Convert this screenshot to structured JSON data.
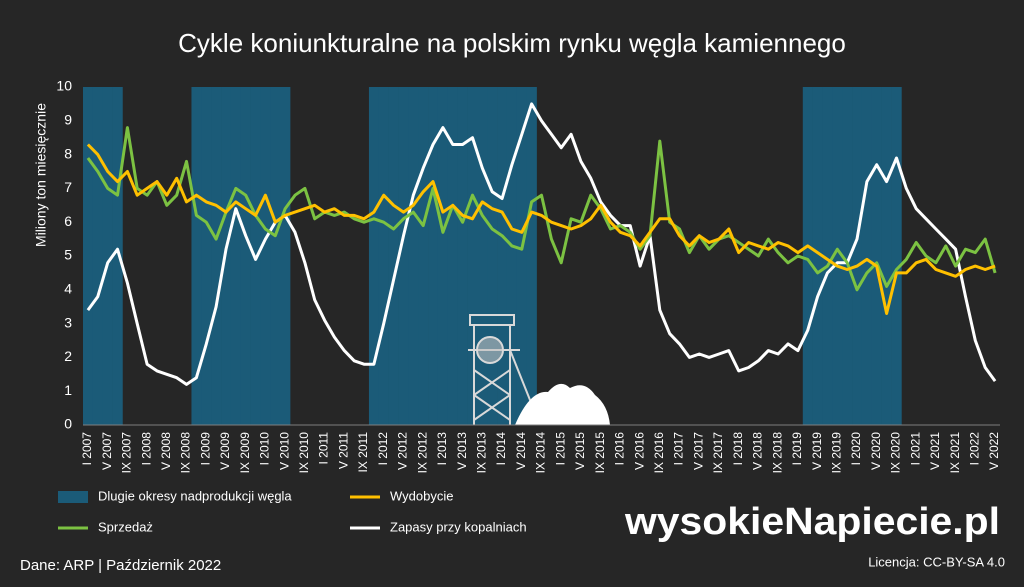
{
  "chart_data": {
    "type": "line",
    "title": "Cykle koniunkturalne na polskim rynku węgla kamiennego",
    "y_label": "Miliony ton miesięcznie",
    "source": "Dane: ARP  |  Październik 2022",
    "logo": "wysokieNapiecie.pl",
    "license": "Licencja: CC-BY-SA 4.0",
    "ylim": [
      0,
      10
    ],
    "yticks": [
      0,
      1,
      2,
      3,
      4,
      5,
      6,
      7,
      8,
      9,
      10
    ],
    "grid": false,
    "categories": [
      "I 2007",
      null,
      "V 2007",
      null,
      "IX 2007",
      null,
      "I 2008",
      null,
      "V 2008",
      null,
      "IX 2008",
      null,
      "I 2009",
      null,
      "V 2009",
      null,
      "IX 2009",
      null,
      "I 2010",
      null,
      "V 2010",
      null,
      "IX 2010",
      null,
      "I 2011",
      null,
      "V 2011",
      null,
      "IX 2011",
      null,
      "I 2012",
      null,
      "V 2012",
      null,
      "IX 2012",
      null,
      "I 2013",
      null,
      "V 2013",
      null,
      "IX 2013",
      null,
      "I 2014",
      null,
      "V 2014",
      null,
      "IX 2014",
      null,
      "I 2015",
      null,
      "V 2015",
      null,
      "IX 2015",
      null,
      "I 2016",
      null,
      "V 2016",
      null,
      "IX 2016",
      null,
      "I 2017",
      null,
      "V 2017",
      null,
      "IX 2017",
      null,
      "I 2018",
      null,
      "V 2018",
      null,
      "IX 2018",
      null,
      "I 2019",
      null,
      "V 2019",
      null,
      "IX 2019",
      null,
      "I 2020",
      null,
      "V 2020",
      null,
      "IX 2020",
      null,
      "I 2021",
      null,
      "V 2021",
      null,
      "IX 2021",
      null,
      "I 2022",
      null,
      "V 2022"
    ],
    "series": [
      {
        "name": "Dlugie okresy nadprodukcji węgla",
        "type": "band",
        "color": "#1b5b78",
        "values": [
          10,
          10,
          10,
          10,
          null,
          null,
          null,
          null,
          null,
          null,
          null,
          10,
          10,
          10,
          10,
          10,
          10,
          10,
          10,
          10,
          10,
          null,
          null,
          null,
          null,
          null,
          null,
          null,
          null,
          10,
          10,
          10,
          10,
          10,
          10,
          10,
          10,
          10,
          10,
          10,
          10,
          10,
          10,
          10,
          10,
          10,
          null,
          null,
          null,
          null,
          null,
          null,
          null,
          null,
          null,
          null,
          null,
          null,
          null,
          null,
          null,
          null,
          null,
          null,
          null,
          null,
          null,
          null,
          null,
          null,
          null,
          null,
          null,
          10,
          10,
          10,
          10,
          10,
          10,
          10,
          10,
          10,
          10,
          null,
          null,
          null,
          null,
          null,
          null,
          null,
          null,
          null,
          null
        ]
      },
      {
        "name": "Wydobycie",
        "type": "line",
        "color": "#ffc000",
        "values": [
          8.3,
          8.0,
          7.5,
          7.2,
          7.5,
          6.8,
          7.0,
          7.2,
          6.8,
          7.3,
          6.6,
          6.8,
          6.6,
          6.5,
          6.3,
          6.6,
          6.4,
          6.2,
          6.8,
          6.0,
          6.2,
          6.3,
          6.4,
          6.5,
          6.3,
          6.4,
          6.2,
          6.2,
          6.1,
          6.3,
          6.8,
          6.5,
          6.3,
          6.5,
          6.9,
          7.2,
          6.3,
          6.5,
          6.2,
          6.1,
          6.6,
          6.4,
          6.3,
          5.8,
          5.7,
          6.3,
          6.2,
          6.0,
          5.9,
          5.8,
          5.9,
          6.1,
          6.5,
          6.0,
          5.7,
          5.6,
          5.3,
          5.7,
          6.1,
          6.1,
          5.6,
          5.3,
          5.6,
          5.4,
          5.5,
          5.8,
          5.1,
          5.4,
          5.3,
          5.2,
          5.4,
          5.3,
          5.1,
          5.3,
          5.1,
          4.9,
          4.7,
          4.6,
          4.7,
          4.9,
          4.7,
          3.3,
          4.5,
          4.5,
          4.8,
          4.9,
          4.6,
          4.5,
          4.4,
          4.6,
          4.7,
          4.6,
          4.7
        ]
      },
      {
        "name": "Sprzedaż",
        "type": "line",
        "color": "#7cc242",
        "values": [
          7.9,
          7.5,
          7.0,
          6.8,
          8.8,
          7.0,
          6.8,
          7.2,
          6.5,
          6.8,
          7.8,
          6.2,
          6.0,
          5.5,
          6.3,
          7.0,
          6.8,
          6.2,
          5.8,
          5.6,
          6.4,
          6.8,
          7.0,
          6.1,
          6.3,
          6.2,
          6.3,
          6.1,
          6.0,
          6.1,
          6.0,
          5.8,
          6.1,
          6.3,
          5.9,
          7.0,
          5.7,
          6.5,
          6.0,
          6.8,
          6.2,
          5.8,
          5.6,
          5.3,
          5.2,
          6.6,
          6.8,
          5.5,
          4.8,
          6.1,
          6.0,
          6.8,
          6.4,
          5.8,
          5.9,
          5.7,
          5.2,
          5.6,
          8.4,
          6.0,
          5.8,
          5.1,
          5.6,
          5.2,
          5.5,
          5.6,
          5.4,
          5.2,
          5.0,
          5.5,
          5.1,
          4.8,
          5.0,
          4.9,
          4.5,
          4.7,
          5.2,
          4.8,
          4.0,
          4.5,
          4.8,
          4.1,
          4.6,
          4.9,
          5.4,
          5.0,
          4.8,
          5.3,
          4.7,
          5.2,
          5.1,
          5.5,
          4.5
        ]
      },
      {
        "name": "Zapasy przy kopalniach",
        "type": "line",
        "color": "#ffffff",
        "values": [
          3.4,
          3.8,
          4.8,
          5.2,
          4.2,
          3.0,
          1.8,
          1.6,
          1.5,
          1.4,
          1.2,
          1.4,
          2.4,
          3.5,
          5.2,
          6.4,
          5.6,
          4.9,
          5.5,
          6.0,
          6.2,
          5.7,
          4.8,
          3.7,
          3.1,
          2.6,
          2.2,
          1.9,
          1.8,
          1.8,
          3.0,
          4.3,
          5.6,
          6.8,
          7.6,
          8.3,
          8.8,
          8.3,
          8.3,
          8.5,
          7.6,
          6.9,
          6.7,
          7.7,
          8.6,
          9.5,
          9.0,
          8.6,
          8.2,
          8.6,
          7.8,
          7.3,
          6.6,
          6.2,
          5.9,
          5.9,
          4.7,
          5.6,
          3.4,
          2.7,
          2.4,
          2.0,
          2.1,
          2.0,
          2.1,
          2.2,
          1.6,
          1.7,
          1.9,
          2.2,
          2.1,
          2.4,
          2.2,
          2.8,
          3.8,
          4.5,
          4.8,
          4.8,
          5.5,
          7.2,
          7.7,
          7.2,
          7.9,
          7.0,
          6.4,
          6.1,
          5.8,
          5.5,
          5.2,
          3.8,
          2.5,
          1.7,
          1.3
        ]
      }
    ]
  }
}
